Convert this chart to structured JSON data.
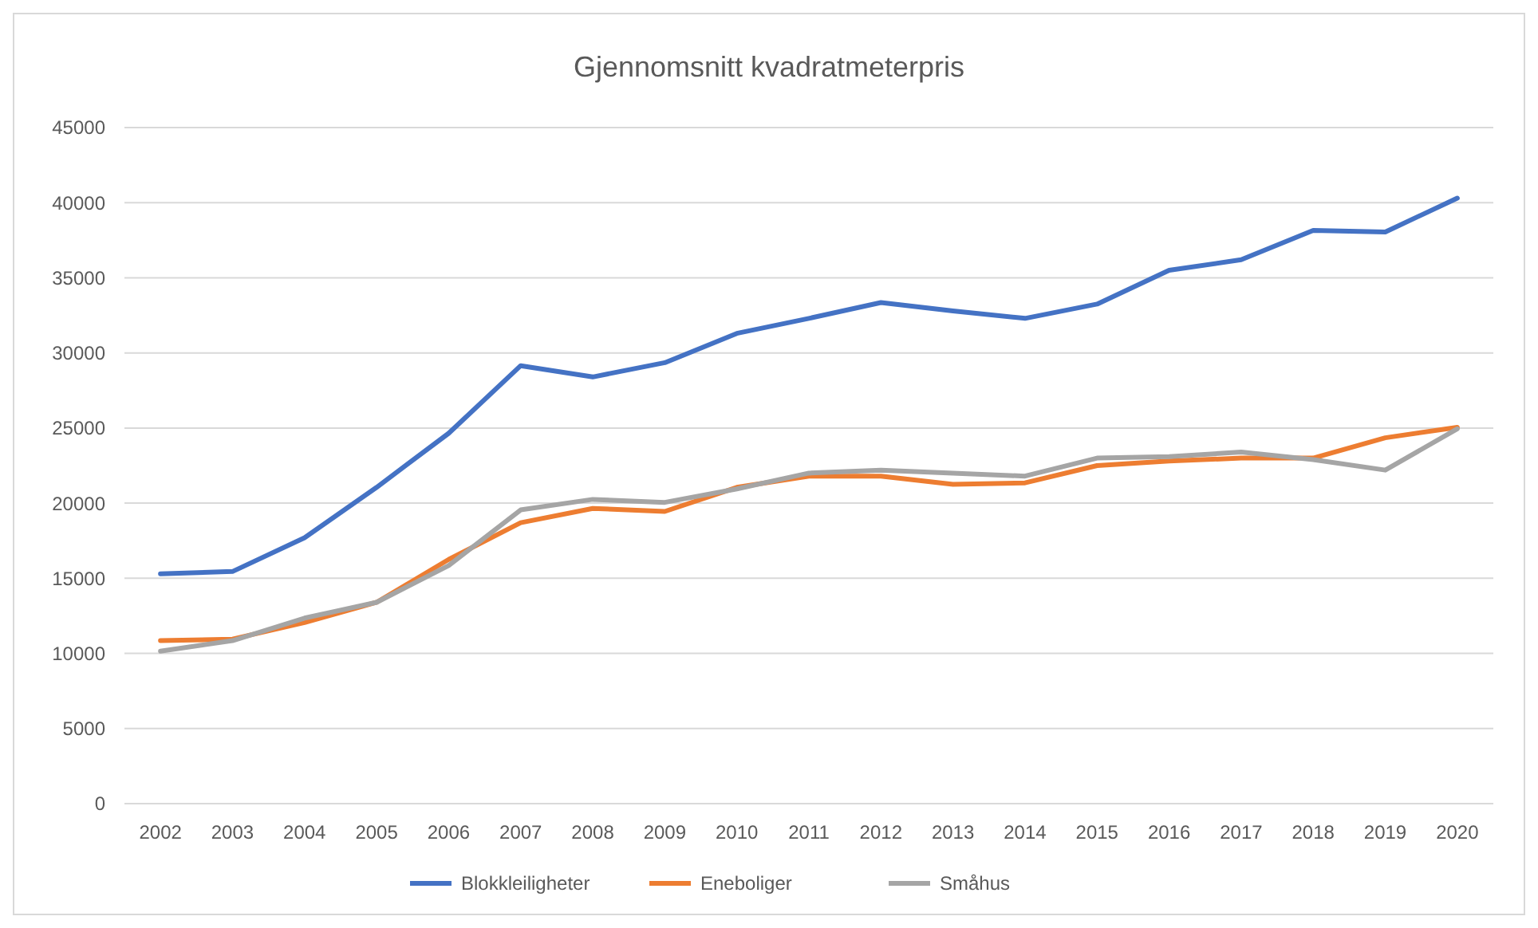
{
  "chart_data": {
    "type": "line",
    "title": "Gjennomsnitt kvadratmeterpris",
    "categories": [
      "2002",
      "2003",
      "2004",
      "2005",
      "2006",
      "2007",
      "2008",
      "2009",
      "2010",
      "2011",
      "2012",
      "2013",
      "2014",
      "2015",
      "2016",
      "2017",
      "2018",
      "2019",
      "2020"
    ],
    "series": [
      {
        "name": "Blokkleiligheter",
        "color": "#4472c4",
        "values": [
          15300,
          15450,
          17700,
          21050,
          24650,
          29150,
          28400,
          29350,
          31300,
          32300,
          33350,
          32800,
          32300,
          33250,
          35500,
          36200,
          38150,
          38050,
          40300
        ]
      },
      {
        "name": "Eneboliger",
        "color": "#ed7d31",
        "values": [
          10850,
          10950,
          12050,
          13400,
          16250,
          18700,
          19650,
          19450,
          21050,
          21800,
          21800,
          21250,
          21350,
          22500,
          22800,
          23000,
          23000,
          24350,
          25050
        ]
      },
      {
        "name": "Småhus",
        "color": "#a5a5a5",
        "values": [
          10150,
          10850,
          12350,
          13400,
          15850,
          19550,
          20250,
          20050,
          20950,
          22000,
          22200,
          22000,
          21800,
          23000,
          23100,
          23400,
          22900,
          22200,
          24950
        ]
      }
    ],
    "ylim": [
      0,
      45000
    ],
    "yticks": [
      0,
      5000,
      10000,
      15000,
      20000,
      25000,
      30000,
      35000,
      40000,
      45000
    ],
    "grid": "y",
    "legend": "bottom",
    "marker": "none",
    "line_style": "solid"
  }
}
